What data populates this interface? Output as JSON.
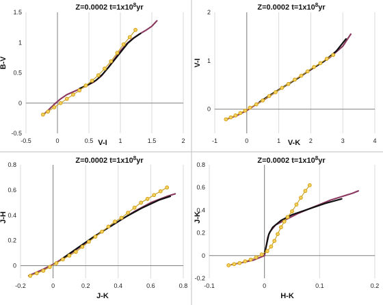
{
  "chart_data": [
    {
      "type": "line",
      "title_main": "Z=0.0002   t=1x10",
      "title_exp": "8",
      "title_tail": "yr",
      "xlabel": "V-I",
      "ylabel": "B-V",
      "xlim": [
        -0.5,
        2
      ],
      "ylim": [
        -0.5,
        1.5
      ],
      "xticks": [
        -0.5,
        0,
        0.5,
        1,
        1.5,
        2
      ],
      "xtick_labels": [
        "-0.5",
        "0",
        "0.5",
        "1",
        "1.5",
        "2"
      ],
      "yticks": [
        -0.5,
        0,
        0.5,
        1,
        1.5
      ],
      "ytick_labels": [
        "-0.5",
        "0",
        "0.5",
        "1",
        "1.5"
      ],
      "grid": "vertical",
      "series": [
        {
          "color": "#8b3a62",
          "style": "line",
          "x": [
            -0.22,
            -0.15,
            -0.05,
            0.05,
            0.15,
            0.3,
            0.45,
            0.58,
            0.7,
            0.8,
            0.9,
            1.0,
            1.1,
            1.2,
            1.3,
            1.4,
            1.5,
            1.58
          ],
          "y": [
            -0.19,
            -0.12,
            -0.02,
            0.07,
            0.14,
            0.21,
            0.28,
            0.35,
            0.45,
            0.58,
            0.72,
            0.86,
            0.98,
            1.07,
            1.14,
            1.2,
            1.27,
            1.36
          ]
        },
        {
          "color": "#111111",
          "style": "line",
          "x": [
            0.35,
            0.5,
            0.62,
            0.72,
            0.82,
            0.92,
            1.02,
            1.12,
            1.22,
            1.32
          ],
          "y": [
            0.24,
            0.31,
            0.38,
            0.48,
            0.6,
            0.73,
            0.86,
            0.99,
            1.08,
            1.15
          ]
        },
        {
          "color": "#d4a017",
          "style": "markers",
          "x": [
            -0.23,
            -0.15,
            -0.05,
            0.05,
            0.15,
            0.25,
            0.35,
            0.45,
            0.55,
            0.65,
            0.75,
            0.85,
            0.95,
            1.05,
            1.15,
            1.24
          ],
          "y": [
            -0.19,
            -0.14,
            -0.07,
            0.0,
            0.07,
            0.14,
            0.21,
            0.29,
            0.37,
            0.46,
            0.57,
            0.69,
            0.83,
            0.97,
            1.09,
            1.21
          ]
        }
      ]
    },
    {
      "type": "line",
      "title_main": "Z=0.0002   t=1x10",
      "title_exp": "8",
      "title_tail": "yr",
      "xlabel": "V-K",
      "ylabel": "V-I",
      "xlim": [
        -1,
        4
      ],
      "ylim": [
        -0.5,
        2
      ],
      "xticks": [
        -1,
        0,
        1,
        2,
        3,
        4
      ],
      "xtick_labels": [
        "-1",
        "0",
        "1",
        "2",
        "3",
        "4"
      ],
      "yticks": [
        -0.5,
        0,
        0.5,
        1,
        1.5,
        2
      ],
      "ytick_labels": [
        "",
        "0",
        "",
        "1",
        "",
        "2"
      ],
      "grid": "vertical",
      "series": [
        {
          "color": "#8b3a62",
          "style": "line",
          "x": [
            -0.6,
            -0.3,
            0.0,
            0.3,
            0.6,
            1.0,
            1.4,
            1.8,
            2.2,
            2.6,
            3.0,
            3.25
          ],
          "y": [
            -0.2,
            -0.13,
            -0.03,
            0.1,
            0.22,
            0.4,
            0.56,
            0.73,
            0.9,
            1.07,
            1.3,
            1.55
          ]
        },
        {
          "color": "#111111",
          "style": "line",
          "x": [
            0.4,
            0.8,
            1.2,
            1.6,
            2.0,
            2.4,
            2.8,
            3.1
          ],
          "y": [
            0.15,
            0.32,
            0.48,
            0.64,
            0.82,
            0.98,
            1.2,
            1.45
          ]
        },
        {
          "color": "#d4a017",
          "style": "markers",
          "x": [
            -0.65,
            -0.5,
            -0.35,
            -0.2,
            -0.05,
            0.1,
            0.3,
            0.5,
            0.7,
            0.9,
            1.1,
            1.3,
            1.5,
            1.7,
            1.9,
            2.1,
            2.3,
            2.5,
            2.7
          ],
          "y": [
            -0.21,
            -0.17,
            -0.13,
            -0.08,
            -0.03,
            0.03,
            0.1,
            0.18,
            0.27,
            0.35,
            0.44,
            0.52,
            0.61,
            0.69,
            0.78,
            0.87,
            0.95,
            1.04,
            1.12
          ]
        }
      ]
    },
    {
      "type": "line",
      "title_main": "Z=0.0002   t=1x10",
      "title_exp": "8",
      "title_tail": "yr",
      "xlabel": "J-K",
      "ylabel": "J-H",
      "xlim": [
        -0.2,
        0.8
      ],
      "ylim": [
        -0.1,
        0.8
      ],
      "xticks": [
        -0.2,
        0,
        0.2,
        0.4,
        0.6,
        0.8
      ],
      "xtick_labels": [
        "-0.2",
        "0",
        "0.2",
        "0.4",
        "0.6",
        "0.8"
      ],
      "yticks": [
        0,
        0.2,
        0.4,
        0.6,
        0.8
      ],
      "ytick_labels": [
        "0",
        "0.2",
        "0.4",
        "0.6",
        "0.8"
      ],
      "grid": "vertical",
      "series": [
        {
          "color": "#8b3a62",
          "style": "line",
          "x": [
            -0.15,
            -0.08,
            0.0,
            0.1,
            0.2,
            0.3,
            0.4,
            0.5,
            0.6,
            0.7,
            0.75
          ],
          "y": [
            -0.08,
            -0.04,
            0.01,
            0.09,
            0.18,
            0.27,
            0.35,
            0.43,
            0.5,
            0.55,
            0.57
          ]
        },
        {
          "color": "#111111",
          "style": "line",
          "x": [
            0.05,
            0.15,
            0.25,
            0.35,
            0.45,
            0.55,
            0.65,
            0.72
          ],
          "y": [
            0.05,
            0.14,
            0.23,
            0.31,
            0.39,
            0.46,
            0.52,
            0.55
          ]
        },
        {
          "color": "#d4a017",
          "style": "markers",
          "x": [
            -0.14,
            -0.1,
            -0.06,
            -0.02,
            0.02,
            0.06,
            0.1,
            0.14,
            0.18,
            0.22,
            0.26,
            0.3,
            0.34,
            0.38,
            0.42,
            0.46,
            0.5,
            0.54,
            0.58,
            0.62,
            0.66,
            0.7
          ],
          "y": [
            -0.08,
            -0.06,
            -0.04,
            -0.01,
            0.02,
            0.05,
            0.08,
            0.11,
            0.15,
            0.19,
            0.23,
            0.27,
            0.31,
            0.35,
            0.38,
            0.42,
            0.46,
            0.5,
            0.53,
            0.56,
            0.59,
            0.62
          ]
        }
      ]
    },
    {
      "type": "line",
      "title_main": "Z=0.0002   t=1x10",
      "title_exp": "8",
      "title_tail": "yr",
      "xlabel": "H-K",
      "ylabel": "J-K",
      "xlim": [
        -0.1,
        0.2
      ],
      "ylim": [
        -0.2,
        0.8
      ],
      "xticks": [
        -0.1,
        0,
        0.1,
        0.2
      ],
      "xtick_labels": [
        "-0.1",
        "0",
        "0.1",
        "0.2"
      ],
      "yticks": [
        -0.2,
        0,
        0.2,
        0.4,
        0.6,
        0.8
      ],
      "ytick_labels": [
        "-0.2",
        "0",
        "0.2",
        "0.4",
        "0.6",
        "0.8"
      ],
      "grid": "vertical",
      "series": [
        {
          "color": "#8b3a62",
          "style": "line",
          "x": [
            -0.06,
            -0.04,
            -0.02,
            0.0,
            0.003,
            0.006,
            0.01,
            0.02,
            0.04,
            0.06,
            0.08,
            0.1,
            0.12,
            0.14,
            0.16,
            0.17
          ],
          "y": [
            -0.08,
            -0.06,
            -0.04,
            0.0,
            0.08,
            0.16,
            0.21,
            0.27,
            0.32,
            0.37,
            0.41,
            0.45,
            0.49,
            0.52,
            0.55,
            0.57
          ]
        },
        {
          "color": "#111111",
          "style": "line",
          "x": [
            0.0,
            0.004,
            0.008,
            0.015,
            0.03,
            0.05,
            0.08,
            0.11,
            0.14
          ],
          "y": [
            0.02,
            0.1,
            0.19,
            0.25,
            0.31,
            0.36,
            0.41,
            0.46,
            0.5
          ]
        },
        {
          "color": "#d4a017",
          "style": "markers",
          "x": [
            -0.065,
            -0.055,
            -0.045,
            -0.035,
            -0.025,
            -0.015,
            -0.005,
            0.005,
            0.012,
            0.018,
            0.024,
            0.03,
            0.036,
            0.042,
            0.05,
            0.058,
            0.066,
            0.074,
            0.082
          ],
          "y": [
            -0.085,
            -0.075,
            -0.065,
            -0.05,
            -0.035,
            -0.015,
            0.01,
            0.04,
            0.08,
            0.13,
            0.19,
            0.25,
            0.3,
            0.34,
            0.39,
            0.45,
            0.51,
            0.57,
            0.62
          ]
        }
      ]
    }
  ]
}
